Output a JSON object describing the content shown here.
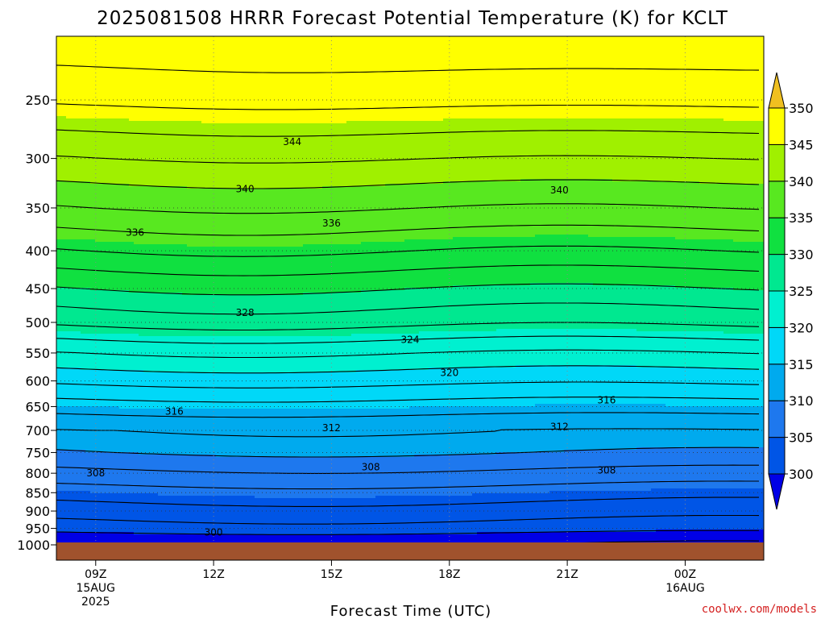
{
  "chart_data": {
    "type": "heatmap",
    "title": "2025081508 HRRR Forecast Potential Temperature (K) for KCLT",
    "xlabel": "Forecast Time (UTC)",
    "ylabel": "",
    "credit": "coolwx.com/models",
    "x_ticks": [
      {
        "label": "09Z",
        "sub1": "15AUG",
        "sub2": "2025",
        "hour": 9
      },
      {
        "label": "12Z",
        "sub1": "",
        "sub2": "",
        "hour": 12
      },
      {
        "label": "15Z",
        "sub1": "",
        "sub2": "",
        "hour": 15
      },
      {
        "label": "18Z",
        "sub1": "",
        "sub2": "",
        "hour": 18
      },
      {
        "label": "21Z",
        "sub1": "",
        "sub2": "",
        "hour": 21
      },
      {
        "label": "00Z",
        "sub1": "16AUG",
        "sub2": "",
        "hour": 24
      }
    ],
    "x_range_hours": [
      8,
      26
    ],
    "y_ticks": [
      250,
      300,
      350,
      400,
      450,
      500,
      550,
      600,
      650,
      700,
      750,
      800,
      850,
      900,
      950,
      1000
    ],
    "y_range_hpa": [
      200,
      1010
    ],
    "y_scale": "log",
    "grid": true,
    "colorbar": {
      "position": "right",
      "ticks": [
        300,
        305,
        310,
        315,
        320,
        325,
        330,
        335,
        340,
        345,
        350
      ],
      "bins": [
        {
          "lo": 295,
          "hi": 300,
          "color": "#0000e6"
        },
        {
          "lo": 300,
          "hi": 305,
          "color": "#0055e6"
        },
        {
          "lo": 305,
          "hi": 310,
          "color": "#1e78ee"
        },
        {
          "lo": 310,
          "hi": 315,
          "color": "#00aaee"
        },
        {
          "lo": 315,
          "hi": 320,
          "color": "#00d8f8"
        },
        {
          "lo": 320,
          "hi": 325,
          "color": "#00f0d0"
        },
        {
          "lo": 325,
          "hi": 330,
          "color": "#00e890"
        },
        {
          "lo": 330,
          "hi": 335,
          "color": "#10e040"
        },
        {
          "lo": 335,
          "hi": 340,
          "color": "#58e820"
        },
        {
          "lo": 340,
          "hi": 345,
          "color": "#a0f000"
        },
        {
          "lo": 345,
          "hi": 350,
          "color": "#ffff00"
        },
        {
          "lo": 350,
          "hi": 360,
          "color": "#f0c020"
        }
      ]
    },
    "ground_color": "#a0522d",
    "profile": {
      "pressure_hpa": [
        200,
        250,
        300,
        350,
        400,
        450,
        500,
        550,
        600,
        650,
        700,
        750,
        800,
        850,
        900,
        950,
        975,
        1000
      ],
      "theta_k": [
        350,
        346.5,
        342,
        338,
        334,
        330,
        326.5,
        322,
        318.5,
        315,
        312,
        310,
        307.5,
        305,
        303,
        301,
        299,
        298
      ]
    },
    "contour_interval_k": 2,
    "contour_labels": [
      {
        "text": "344",
        "hour": 14.0,
        "p": 285
      },
      {
        "text": "340",
        "hour": 12.8,
        "p": 330
      },
      {
        "text": "340",
        "hour": 20.8,
        "p": 331
      },
      {
        "text": "336",
        "hour": 10.0,
        "p": 378
      },
      {
        "text": "336",
        "hour": 15.0,
        "p": 367
      },
      {
        "text": "328",
        "hour": 12.8,
        "p": 485
      },
      {
        "text": "324",
        "hour": 17.0,
        "p": 528
      },
      {
        "text": "320",
        "hour": 18.0,
        "p": 585
      },
      {
        "text": "316",
        "hour": 11.0,
        "p": 660
      },
      {
        "text": "316",
        "hour": 22.0,
        "p": 637
      },
      {
        "text": "312",
        "hour": 15.0,
        "p": 695
      },
      {
        "text": "312",
        "hour": 20.8,
        "p": 692
      },
      {
        "text": "308",
        "hour": 9.0,
        "p": 800
      },
      {
        "text": "308",
        "hour": 16.0,
        "p": 785
      },
      {
        "text": "308",
        "hour": 22.0,
        "p": 793
      },
      {
        "text": "300",
        "hour": 12.0,
        "p": 962
      }
    ]
  }
}
